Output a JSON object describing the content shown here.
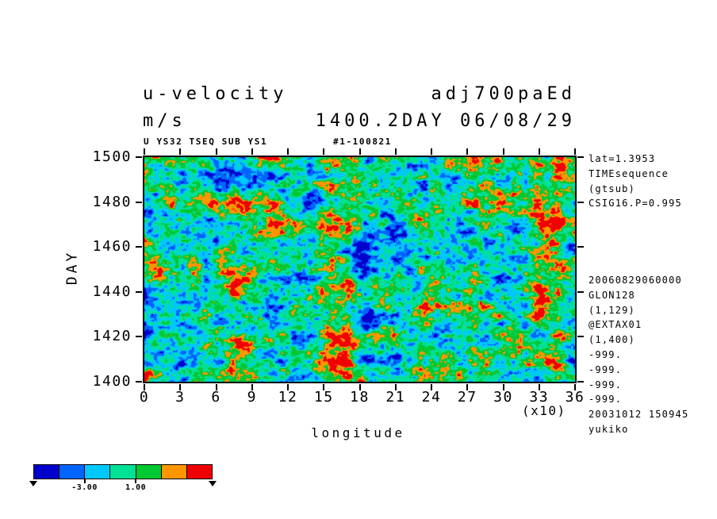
{
  "titles": {
    "left_line1": "u-velocity",
    "left_line2": "m/s",
    "right_line1": "adj700paEd",
    "right_line2": "1400.2DAY 06/08/29",
    "sub_left": "U YS32 TSEQ SUB YS1",
    "sub_right": "#1-100821"
  },
  "axes": {
    "y_label": "DAY",
    "y_ticks": [
      "1500",
      "1480",
      "1460",
      "1440",
      "1420",
      "1400"
    ],
    "x_ticks": [
      "0",
      "3",
      "6",
      "9",
      "12",
      "15",
      "18",
      "21",
      "24",
      "27",
      "30",
      "33",
      "36"
    ],
    "x_scale_note": "(x10)",
    "x_label": "longitude"
  },
  "annotations": {
    "group1": [
      "lat=1.3953",
      "TIMEsequence",
      "(gtsub)",
      "CSIG16.P=0.995"
    ],
    "group2": [
      "20060829060000",
      "GLON128",
      "(1,129)",
      "@EXTAX01",
      "(1,400)",
      "-999.",
      "-999.",
      "-999.",
      "-999.",
      "20031012 150945",
      "yukiko"
    ]
  },
  "colorbar": {
    "colors": [
      "#0000cd",
      "#0064ff",
      "#00c8ff",
      "#00e196",
      "#00c832",
      "#ff9600",
      "#f00000"
    ],
    "bounds": [
      -5,
      -3,
      -1,
      1,
      3,
      5
    ],
    "labels": [
      {
        "text": "-3.00",
        "boundary_index": 1
      },
      {
        "text": "1.00",
        "boundary_index": 3
      }
    ]
  },
  "chart_data": {
    "type": "heatmap",
    "title": "u-velocity",
    "units": "m/s",
    "xlabel": "longitude",
    "x_scale_factor": 10,
    "ylabel": "DAY",
    "x_range": [
      0,
      360
    ],
    "y_range": [
      1400,
      1500
    ],
    "x_ticks": [
      0,
      3,
      6,
      9,
      12,
      15,
      18,
      21,
      24,
      27,
      30,
      33,
      36
    ],
    "y_ticks": [
      1400,
      1420,
      1440,
      1460,
      1480,
      1500
    ],
    "colormap_bounds": [
      -5,
      -3,
      -1,
      1,
      3,
      5
    ],
    "colormap_colors": [
      "#0000cd",
      "#0064ff",
      "#00c8ff",
      "#00e196",
      "#00c832",
      "#ff9600",
      "#f00000"
    ],
    "labeled_levels": [
      -3.0,
      1.0
    ],
    "features": [
      "fine-grained turbulent field dominated by green and cyan",
      "strong red positive streak near longitude 150-175 spanning most days",
      "deep blue negative band near longitude 185-195",
      "strong red streaks near longitude 330-355",
      "horizontal streaky small-scale texture throughout"
    ],
    "field": {
      "seed": 100821,
      "amplitude": 3.6,
      "octaves": [
        {
          "nx": 14,
          "ny": 10,
          "w": 0.9
        },
        {
          "nx": 34,
          "ny": 24,
          "w": 0.85
        },
        {
          "nx": 78,
          "ny": 54,
          "w": 0.8
        },
        {
          "nx": 160,
          "ny": 104,
          "w": 0.55
        }
      ],
      "hotspots": [
        {
          "x": 0.44,
          "width": 0.03,
          "amp": 4.6
        },
        {
          "x": 0.475,
          "width": 0.014,
          "amp": 2.6
        },
        {
          "x": 0.515,
          "width": 0.018,
          "amp": -3.6
        },
        {
          "x": 0.09,
          "width": 0.016,
          "amp": -2.4
        },
        {
          "x": 0.225,
          "width": 0.03,
          "amp": 1.5
        },
        {
          "x": 0.6,
          "width": 0.06,
          "amp": -1.0
        },
        {
          "x": 0.92,
          "width": 0.022,
          "amp": 3.4
        },
        {
          "x": 0.958,
          "width": 0.016,
          "amp": 4.6
        }
      ]
    }
  }
}
